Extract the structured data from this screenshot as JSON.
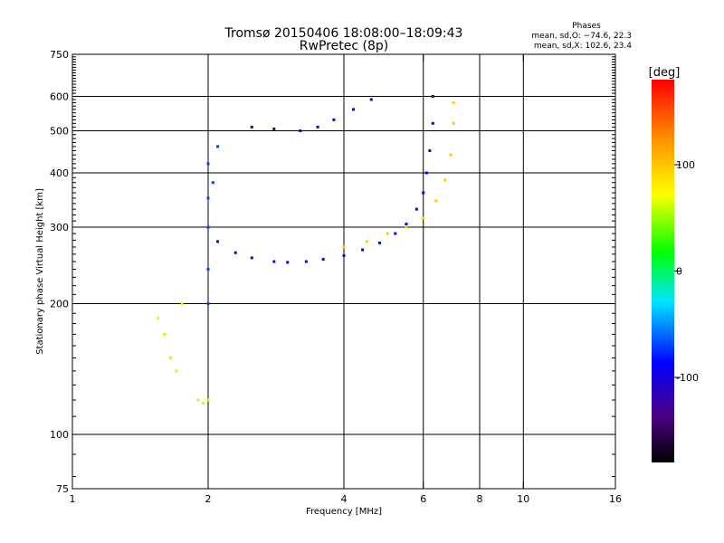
{
  "chart_data": {
    "type": "scatter",
    "title": "Tromsø 20150406 18:08:00–18:09:43",
    "subtitle": "RwPretec (8p)",
    "info": {
      "heading": "Phases",
      "line_o": "mean, sd,O: −74.6, 22.3",
      "line_x": "mean, sd,X: 102.6, 23.4"
    },
    "xlabel": "Frequency [MHz]",
    "ylabel": "Stationary phase Virtual Height [km]",
    "x_scale": "log2",
    "y_scale": "log",
    "xlim": [
      1,
      16
    ],
    "ylim": [
      75,
      750
    ],
    "x_ticks": [
      {
        "v": 1,
        "label": "1"
      },
      {
        "v": 2,
        "label": "2"
      },
      {
        "v": 4,
        "label": "4"
      },
      {
        "v": 6,
        "label": "6"
      },
      {
        "v": 8,
        "label": "8"
      },
      {
        "v": 10,
        "label": "10"
      },
      {
        "v": 16,
        "label": "16"
      }
    ],
    "x_grid": [
      2,
      4,
      6,
      8,
      10
    ],
    "y_ticks": [
      {
        "v": 75,
        "label": "75"
      },
      {
        "v": 100,
        "label": "100"
      },
      {
        "v": 200,
        "label": "200"
      },
      {
        "v": 300,
        "label": "300"
      },
      {
        "v": 400,
        "label": "400"
      },
      {
        "v": 500,
        "label": "500"
      },
      {
        "v": 600,
        "label": "600"
      },
      {
        "v": 750,
        "label": "750"
      }
    ],
    "y_grid": [
      100,
      200,
      300,
      400,
      500,
      600
    ],
    "grid": true,
    "colorbar": {
      "label": "[deg]",
      "min": -180,
      "max": 180,
      "ticks": [
        {
          "v": 100,
          "label": "100"
        },
        {
          "v": 0,
          "label": "0"
        },
        {
          "v": -100,
          "label": "-100"
        }
      ]
    },
    "series": [
      {
        "trace": "F-layer O-mode trace (blue)",
        "phase": -95,
        "points": [
          [
            2.1,
            278
          ],
          [
            2.3,
            262
          ],
          [
            2.5,
            255
          ],
          [
            2.8,
            250
          ],
          [
            3.0,
            249
          ],
          [
            3.3,
            250
          ],
          [
            3.6,
            253
          ],
          [
            4.0,
            258
          ],
          [
            4.4,
            266
          ],
          [
            4.8,
            276
          ],
          [
            5.2,
            290
          ],
          [
            5.5,
            305
          ],
          [
            5.8,
            330
          ],
          [
            6.0,
            360
          ],
          [
            6.1,
            400
          ],
          [
            6.2,
            450
          ],
          [
            6.3,
            520
          ],
          [
            6.3,
            600
          ]
        ]
      },
      {
        "trace": "F-layer X-mode trace (yellow/orange)",
        "phase": 95,
        "points": [
          [
            4.0,
            270
          ],
          [
            4.5,
            278
          ],
          [
            5.0,
            290
          ],
          [
            5.5,
            300
          ],
          [
            6.0,
            315
          ],
          [
            6.4,
            345
          ],
          [
            6.7,
            385
          ],
          [
            6.9,
            440
          ],
          [
            7.0,
            520
          ],
          [
            7.0,
            580
          ]
        ]
      },
      {
        "trace": "Sporadic E / low-frequency echoes",
        "phase": 60,
        "points": [
          [
            1.55,
            185
          ],
          [
            1.6,
            170
          ],
          [
            1.65,
            150
          ],
          [
            1.7,
            140
          ],
          [
            1.75,
            200
          ],
          [
            1.9,
            120
          ],
          [
            1.95,
            118
          ],
          [
            2.0,
            120
          ]
        ]
      },
      {
        "trace": "Strip near 2 MHz",
        "phase": -70,
        "points": [
          [
            2.0,
            200
          ],
          [
            2.0,
            240
          ],
          [
            2.0,
            300
          ],
          [
            2.0,
            350
          ],
          [
            2.0,
            420
          ],
          [
            2.1,
            460
          ],
          [
            2.05,
            380
          ]
        ]
      },
      {
        "trace": "Upper echoes near 500 km",
        "phase": -90,
        "points": [
          [
            2.5,
            510
          ],
          [
            2.8,
            505
          ],
          [
            3.2,
            500
          ],
          [
            3.5,
            510
          ],
          [
            3.8,
            530
          ],
          [
            4.2,
            560
          ],
          [
            4.6,
            590
          ]
        ]
      }
    ]
  }
}
